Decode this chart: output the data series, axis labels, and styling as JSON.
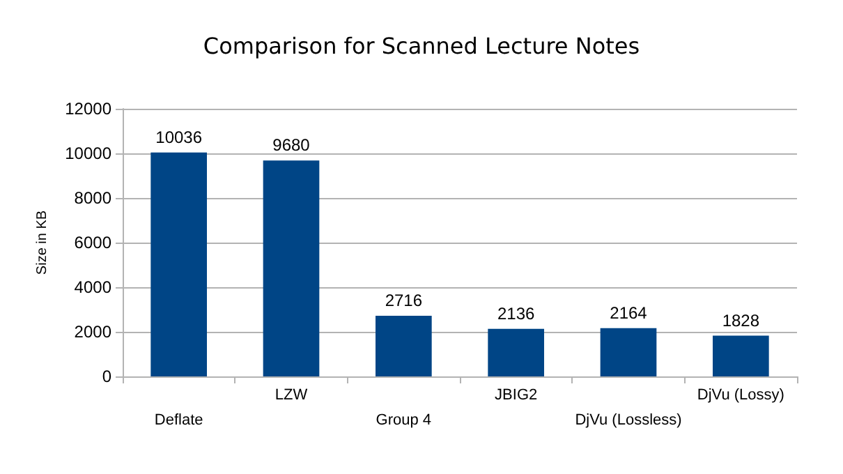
{
  "chart_data": {
    "type": "bar",
    "title": "Comparison for Scanned Lecture Notes",
    "ylabel": "Size in KB",
    "categories": [
      "Deflate",
      "LZW",
      "Group 4",
      "JBIG2",
      "DjVu (Lossless)",
      "DjVu (Lossy)"
    ],
    "values": [
      10036,
      9680,
      2716,
      2136,
      2164,
      1828
    ],
    "color": "#004586",
    "ylim": [
      0,
      12000
    ],
    "yticks": [
      0,
      2000,
      4000,
      6000,
      8000,
      10000,
      12000
    ],
    "grid": "y",
    "data_labels": true
  }
}
